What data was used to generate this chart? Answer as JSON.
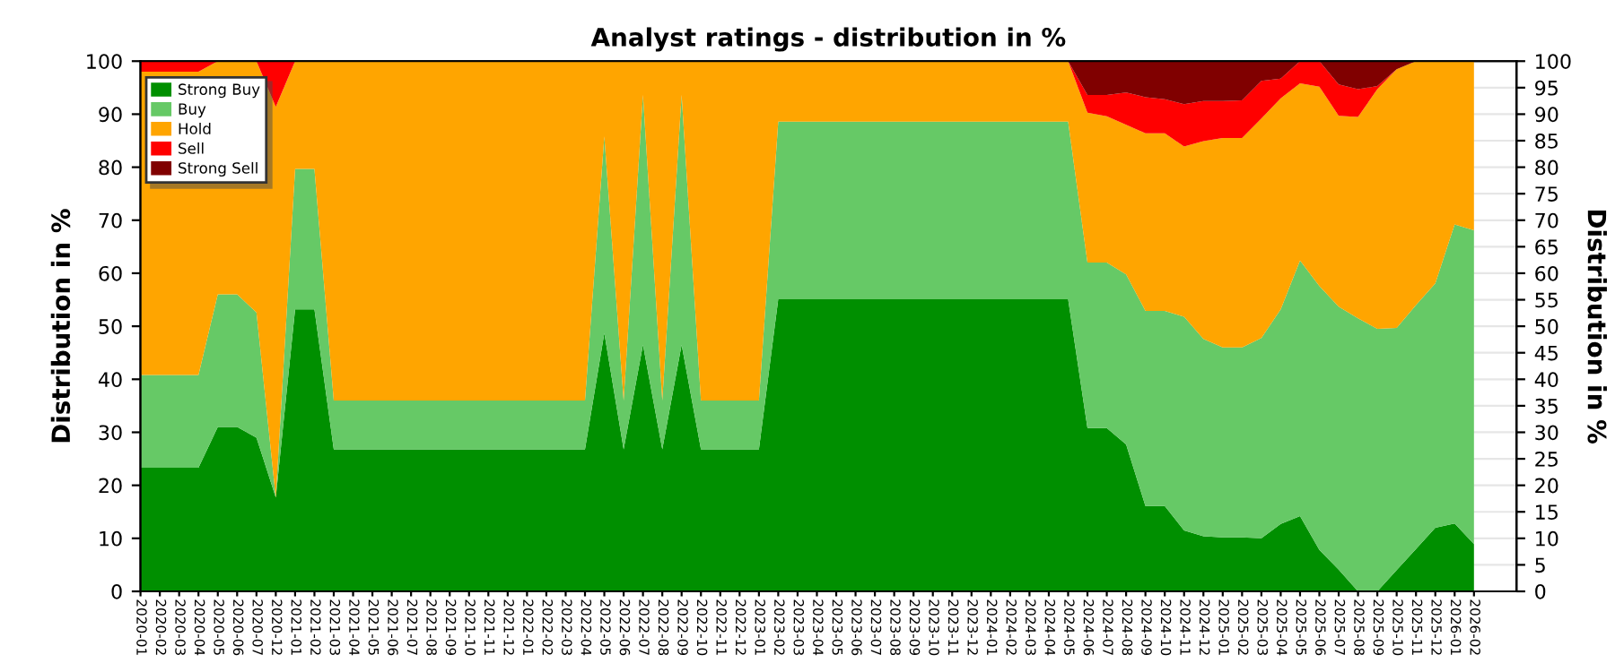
{
  "chart_data": {
    "type": "area",
    "stacked": true,
    "title": "Analyst ratings - distribution in %",
    "ylabel": "Distribution in %",
    "y2label": "Distribution in %",
    "categories": [
      "2020-01",
      "2020-02",
      "2020-03",
      "2020-04",
      "2020-05",
      "2020-06",
      "2020-07",
      "2020-12",
      "2021-01",
      "2021-02",
      "2021-03",
      "2021-04",
      "2021-05",
      "2021-06",
      "2021-07",
      "2021-08",
      "2021-09",
      "2021-10",
      "2021-11",
      "2021-12",
      "2022-01",
      "2022-02",
      "2022-03",
      "2022-04",
      "2022-05",
      "2022-06",
      "2022-07",
      "2022-08",
      "2022-09",
      "2022-10",
      "2022-11",
      "2022-12",
      "2023-01",
      "2023-02",
      "2023-03",
      "2023-04",
      "2023-05",
      "2023-06",
      "2023-07",
      "2023-08",
      "2023-09",
      "2023-10",
      "2023-11",
      "2023-12",
      "2024-01",
      "2024-02",
      "2024-03",
      "2024-04",
      "2024-05",
      "2024-06",
      "2024-07",
      "2024-08",
      "2024-09",
      "2024-10",
      "2024-11",
      "2024-12",
      "2025-01",
      "2025-02",
      "2025-03",
      "2025-04",
      "2025-05",
      "2025-06",
      "2025-07",
      "2025-08",
      "2025-09",
      "2025-10",
      "2025-11",
      "2025-12",
      "2026-01",
      "2026-02"
    ],
    "series": [
      {
        "name": "Strong Buy",
        "color": "#008f00",
        "values": [
          23.3,
          23.3,
          23.3,
          23.3,
          31,
          31,
          29,
          17.7,
          53.2,
          53.2,
          26.8,
          26.8,
          26.8,
          26.8,
          26.8,
          26.8,
          26.8,
          26.8,
          26.8,
          26.8,
          26.8,
          26.8,
          26.8,
          26.8,
          48.7,
          26.8,
          46.5,
          26.8,
          46.5,
          26.8,
          26.8,
          26.8,
          26.8,
          55.1,
          55.1,
          55.1,
          55.1,
          55.1,
          55.1,
          55.1,
          55.1,
          55.1,
          55.1,
          55.1,
          55.1,
          55.1,
          55.1,
          55.1,
          55.1,
          30.8,
          30.8,
          27.7,
          16.1,
          16.1,
          11.5,
          10.4,
          10.2,
          10.2,
          10,
          12.7,
          14.2,
          7.8,
          4.1,
          0,
          0,
          4,
          8,
          12,
          12.8,
          8.9
        ]
      },
      {
        "name": "Buy",
        "color": "#66c966",
        "values": [
          17.5,
          17.5,
          17.5,
          17.5,
          25,
          25,
          23.6,
          0,
          26.5,
          26.5,
          9.2,
          9.2,
          9.2,
          9.2,
          9.2,
          9.2,
          9.2,
          9.2,
          9.2,
          9.2,
          9.2,
          9.2,
          9.2,
          9.2,
          37.1,
          9.2,
          47.1,
          9.2,
          47.1,
          9.2,
          9.2,
          9.2,
          9.2,
          33.5,
          33.5,
          33.5,
          33.5,
          33.5,
          33.5,
          33.5,
          33.5,
          33.5,
          33.5,
          33.5,
          33.5,
          33.5,
          33.5,
          33.5,
          33.5,
          31.2,
          31.2,
          32.1,
          36.8,
          36.8,
          40.3,
          37.2,
          35.8,
          35.8,
          37.8,
          40.5,
          48.2,
          49.8,
          49.6,
          51.5,
          49.5,
          45.7,
          46,
          46.1,
          56.4,
          59.2
        ]
      },
      {
        "name": "Hold",
        "color": "#ffa500",
        "values": [
          57.2,
          57.2,
          57.2,
          57.2,
          44,
          44,
          47.4,
          73.7,
          20.3,
          20.3,
          64,
          64,
          64,
          64,
          64,
          64,
          64,
          64,
          64,
          64,
          64,
          64,
          64,
          64,
          14.2,
          64,
          6.4,
          64,
          6.4,
          64,
          64,
          64,
          64,
          11.4,
          11.4,
          11.4,
          11.4,
          11.4,
          11.4,
          11.4,
          11.4,
          11.4,
          11.4,
          11.4,
          11.4,
          11.4,
          11.4,
          11.4,
          11.4,
          28.3,
          27.6,
          28.2,
          33.5,
          33.5,
          32.1,
          37.3,
          39.5,
          39.5,
          41.4,
          39.8,
          33.4,
          37.6,
          36,
          38,
          45.2,
          48.8,
          46,
          41.9,
          30.8,
          31.9
        ]
      },
      {
        "name": "Sell",
        "color": "#ff0000",
        "values": [
          2,
          2,
          2,
          2,
          0,
          0,
          0,
          8.6,
          0,
          0,
          0,
          0,
          0,
          0,
          0,
          0,
          0,
          0,
          0,
          0,
          0,
          0,
          0,
          0,
          0,
          0,
          0,
          0,
          0,
          0,
          0,
          0,
          0,
          0,
          0,
          0,
          0,
          0,
          0,
          0,
          0,
          0,
          0,
          0,
          0,
          0,
          0,
          0,
          0,
          3.3,
          4,
          6.1,
          6.8,
          6.4,
          8,
          7.6,
          7,
          7.1,
          7.1,
          3.7,
          4.2,
          4.8,
          5.9,
          5.2,
          0.6,
          0,
          0,
          0,
          0,
          0
        ]
      },
      {
        "name": "Strong Sell",
        "color": "#800000",
        "values": [
          0,
          0,
          0,
          0,
          0,
          0,
          0,
          0,
          0,
          0,
          0,
          0,
          0,
          0,
          0,
          0,
          0,
          0,
          0,
          0,
          0,
          0,
          0,
          0,
          0,
          0,
          0,
          0,
          0,
          0,
          0,
          0,
          0,
          0,
          0,
          0,
          0,
          0,
          0,
          0,
          0,
          0,
          0,
          0,
          0,
          0,
          0,
          0,
          0,
          6.4,
          6.4,
          5.9,
          6.8,
          7.2,
          8.1,
          7.5,
          7.5,
          7.4,
          3.7,
          3.3,
          0,
          0,
          4.4,
          5.3,
          4.7,
          1.5,
          0,
          0,
          0,
          0
        ]
      }
    ],
    "ylim": [
      0,
      100
    ],
    "yticks": [
      0,
      10,
      20,
      30,
      40,
      50,
      60,
      70,
      80,
      90,
      100
    ],
    "y2lim": [
      0,
      100
    ],
    "y2ticks": [
      0,
      5,
      10,
      15,
      20,
      25,
      30,
      35,
      40,
      45,
      50,
      55,
      60,
      65,
      70,
      75,
      80,
      85,
      90,
      95,
      100
    ],
    "grid": "y",
    "legend": "top left"
  }
}
